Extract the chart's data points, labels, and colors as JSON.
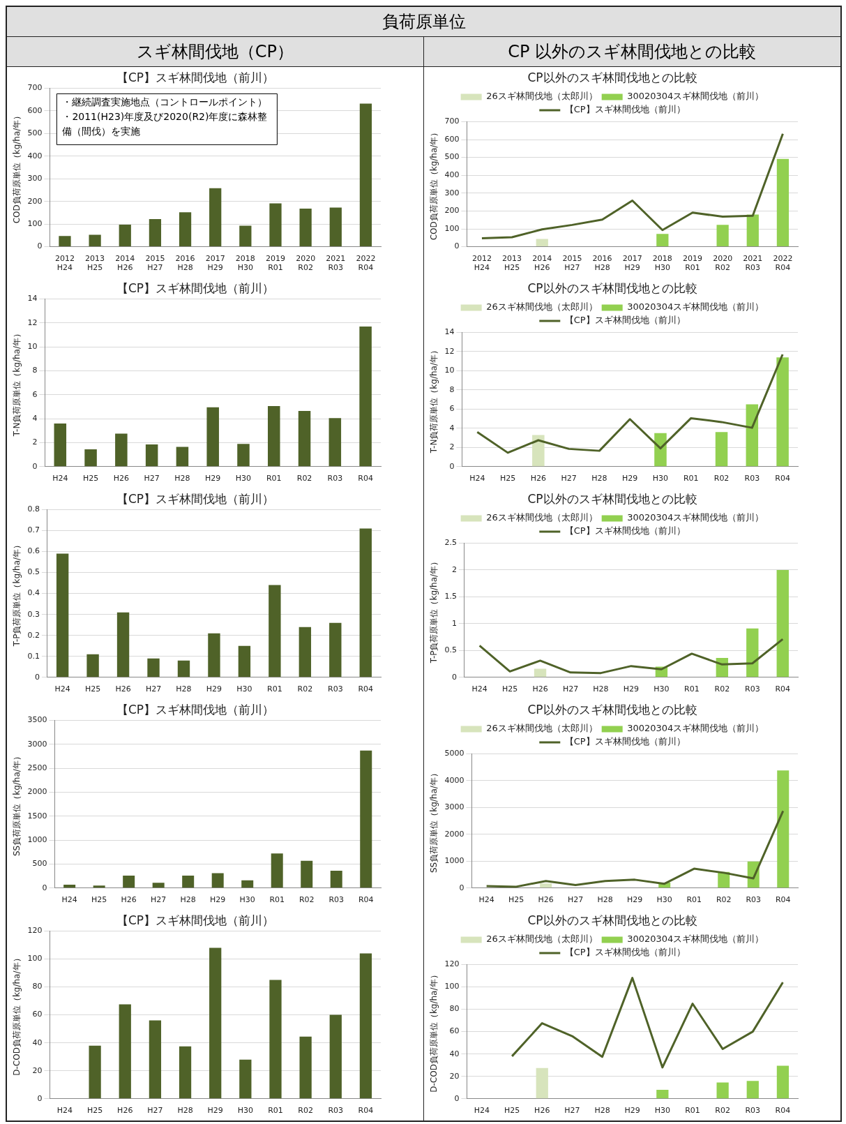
{
  "chart_data": [
    {
      "type": "other",
      "title": "負荷原単位",
      "annotations": [
        "スギ林間伐地（CP）",
        "CP 以外のスギ林間伐地との比較"
      ]
    },
    {
      "type": "bar",
      "title": "【CP】スギ林間伐地（前川）",
      "ylabel": "COD負荷原単位（kg/ha/年）",
      "categories": [
        "2012\nH24",
        "2013\nH25",
        "2014\nH26",
        "2015\nH27",
        "2016\nH28",
        "2017\nH29",
        "2018\nH30",
        "2019\nR01",
        "2020\nR02",
        "2021\nR03",
        "2022\nR04"
      ],
      "values": [
        47,
        53,
        97,
        122,
        152,
        258,
        93,
        191,
        168,
        173,
        632
      ],
      "color": "#4f6228",
      "ylim": [
        0,
        700
      ],
      "yticks": [
        0,
        100,
        200,
        300,
        400,
        500,
        600,
        700
      ],
      "grid": "y",
      "annotations": [
        "・継続調査実施地点（コントロールポイント）",
        "・2011(H23)年度及び2020(R2)年度に森林整備（間伐）を実施"
      ]
    },
    {
      "type": "bar",
      "title": "CP以外のスギ林間伐地との比較",
      "ylabel": "COD負荷原単位（kg/ha/年）",
      "categories": [
        "2012\nH24",
        "2013\nH25",
        "2014\nH26",
        "2015\nH27",
        "2016\nH28",
        "2017\nH29",
        "2018\nH30",
        "2019\nR01",
        "2020\nR02",
        "2021\nR03",
        "2022\nR04"
      ],
      "series": [
        {
          "name": "26スギ林間伐地（太郎川）",
          "color": "#d7e4bc",
          "values": [
            null,
            null,
            43,
            null,
            null,
            null,
            null,
            null,
            null,
            null,
            null
          ]
        },
        {
          "name": "30020304スギ林間伐地（前川）",
          "color": "#92d050",
          "values": [
            null,
            null,
            null,
            null,
            null,
            null,
            72,
            null,
            122,
            180,
            492
          ]
        },
        {
          "name": "【CP】スギ林間伐地（前川）",
          "type": "line",
          "color": "#4f6228",
          "values": [
            47,
            53,
            97,
            122,
            152,
            258,
            93,
            191,
            168,
            173,
            632
          ]
        }
      ],
      "ylim": [
        0,
        700
      ],
      "yticks": [
        0,
        100,
        200,
        300,
        400,
        500,
        600,
        700
      ],
      "grid": "y",
      "legend": "top",
      "marker": "none"
    },
    {
      "type": "bar",
      "title": "【CP】スギ林間伐地（前川）",
      "ylabel": "T-N負荷原単位（kg/ha/年）",
      "categories": [
        "H24",
        "H25",
        "H26",
        "H27",
        "H28",
        "H29",
        "H30",
        "R01",
        "R02",
        "R03",
        "R04"
      ],
      "values": [
        3.6,
        1.45,
        2.75,
        1.85,
        1.65,
        4.95,
        1.9,
        5.05,
        4.65,
        4.05,
        11.7
      ],
      "color": "#4f6228",
      "ylim": [
        0,
        14
      ],
      "yticks": [
        0,
        2,
        4,
        6,
        8,
        10,
        12,
        14
      ],
      "grid": "y"
    },
    {
      "type": "bar",
      "title": "CP以外のスギ林間伐地との比較",
      "ylabel": "T-N負荷原単位（kg/ha/年）",
      "categories": [
        "H24",
        "H25",
        "H26",
        "H27",
        "H28",
        "H29",
        "H30",
        "R01",
        "R02",
        "R03",
        "R04"
      ],
      "series": [
        {
          "name": "26スギ林間伐地（太郎川）",
          "color": "#d7e4bc",
          "values": [
            null,
            null,
            3.3,
            null,
            null,
            null,
            null,
            null,
            null,
            null,
            null
          ]
        },
        {
          "name": "30020304スギ林間伐地（前川）",
          "color": "#92d050",
          "values": [
            null,
            null,
            null,
            null,
            null,
            null,
            3.5,
            null,
            3.6,
            6.5,
            11.4
          ]
        },
        {
          "name": "【CP】スギ林間伐地（前川）",
          "type": "line",
          "color": "#4f6228",
          "values": [
            3.6,
            1.45,
            2.75,
            1.85,
            1.65,
            4.95,
            1.9,
            5.05,
            4.65,
            4.05,
            11.7
          ]
        }
      ],
      "ylim": [
        0,
        14
      ],
      "yticks": [
        0,
        2,
        4,
        6,
        8,
        10,
        12,
        14
      ],
      "grid": "y",
      "legend": "top",
      "marker": "none"
    },
    {
      "type": "bar",
      "title": "【CP】スギ林間伐地（前川）",
      "ylabel": "T-P負荷原単位（kg/ha/年）",
      "categories": [
        "H24",
        "H25",
        "H26",
        "H27",
        "H28",
        "H29",
        "H30",
        "R01",
        "R02",
        "R03",
        "R04"
      ],
      "values": [
        0.59,
        0.11,
        0.31,
        0.09,
        0.08,
        0.21,
        0.15,
        0.44,
        0.24,
        0.26,
        0.71
      ],
      "color": "#4f6228",
      "ylim": [
        0,
        0.8
      ],
      "yticks": [
        0,
        0.1,
        0.2,
        0.3,
        0.4,
        0.5,
        0.6,
        0.7,
        0.8
      ],
      "grid": "y"
    },
    {
      "type": "bar",
      "title": "CP以外のスギ林間伐地との比較",
      "ylabel": "T-P負荷原単位（kg/ha/年）",
      "categories": [
        "H24",
        "H25",
        "H26",
        "H27",
        "H28",
        "H29",
        "H30",
        "R01",
        "R02",
        "R03",
        "R04"
      ],
      "series": [
        {
          "name": "26スギ林間伐地（太郎川）",
          "color": "#d7e4bc",
          "values": [
            null,
            null,
            0.16,
            null,
            null,
            null,
            null,
            null,
            null,
            null,
            null
          ]
        },
        {
          "name": "30020304スギ林間伐地（前川）",
          "color": "#92d050",
          "values": [
            null,
            null,
            null,
            null,
            null,
            null,
            0.2,
            null,
            0.36,
            0.91,
            2.0
          ]
        },
        {
          "name": "【CP】スギ林間伐地（前川）",
          "type": "line",
          "color": "#4f6228",
          "values": [
            0.59,
            0.11,
            0.31,
            0.09,
            0.08,
            0.21,
            0.15,
            0.44,
            0.24,
            0.26,
            0.71
          ]
        }
      ],
      "ylim": [
        0,
        2.5
      ],
      "yticks": [
        0,
        0.5,
        1,
        1.5,
        2,
        2.5
      ],
      "grid": "y",
      "legend": "top",
      "marker": "none"
    },
    {
      "type": "bar",
      "title": "【CP】スギ林間伐地（前川）",
      "ylabel": "SS負荷原単位（kg/ha/年）",
      "categories": [
        "H24",
        "H25",
        "H26",
        "H27",
        "H28",
        "H29",
        "H30",
        "R01",
        "R02",
        "R03",
        "R04"
      ],
      "values": [
        70,
        50,
        260,
        110,
        260,
        310,
        160,
        720,
        570,
        360,
        2870
      ],
      "color": "#4f6228",
      "ylim": [
        0,
        3500
      ],
      "yticks": [
        0,
        500,
        1000,
        1500,
        2000,
        2500,
        3000,
        3500
      ],
      "grid": "y"
    },
    {
      "type": "bar",
      "title": "CP以外のスギ林間伐地との比較",
      "ylabel": "SS負荷原単位（kg/ha/年）",
      "categories": [
        "H24",
        "H25",
        "H26",
        "H27",
        "H28",
        "H29",
        "H30",
        "R01",
        "R02",
        "R03",
        "R04"
      ],
      "series": [
        {
          "name": "26スギ林間伐地（太郎川）",
          "color": "#d7e4bc",
          "values": [
            null,
            null,
            170,
            null,
            null,
            null,
            null,
            null,
            null,
            null,
            null
          ]
        },
        {
          "name": "30020304スギ林間伐地（前川）",
          "color": "#92d050",
          "values": [
            null,
            null,
            null,
            null,
            null,
            null,
            200,
            null,
            600,
            990,
            4380
          ]
        },
        {
          "name": "【CP】スギ林間伐地（前川）",
          "type": "line",
          "color": "#4f6228",
          "values": [
            70,
            50,
            260,
            110,
            260,
            310,
            160,
            720,
            570,
            360,
            2870
          ]
        }
      ],
      "ylim": [
        0,
        5000
      ],
      "yticks": [
        0,
        1000,
        2000,
        3000,
        4000,
        5000
      ],
      "grid": "y",
      "legend": "top",
      "marker": "none"
    },
    {
      "type": "bar",
      "title": "【CP】スギ林間伐地（前川）",
      "ylabel": "D-COD負荷原単位（kg/ha/年）",
      "categories": [
        "H24",
        "H25",
        "H26",
        "H27",
        "H28",
        "H29",
        "H30",
        "R01",
        "R02",
        "R03",
        "R04"
      ],
      "values": [
        null,
        38,
        67.5,
        56,
        37.5,
        108,
        28,
        85,
        44.5,
        60,
        104
      ],
      "color": "#4f6228",
      "ylim": [
        0,
        120
      ],
      "yticks": [
        0,
        20,
        40,
        60,
        80,
        100,
        120
      ],
      "grid": "y"
    },
    {
      "type": "bar",
      "title": "CP以外のスギ林間伐地との比較",
      "ylabel": "D-COD負荷原単位（kg/ha/年）",
      "categories": [
        "H24",
        "H25",
        "H26",
        "H27",
        "H28",
        "H29",
        "H30",
        "R01",
        "R02",
        "R03",
        "R04"
      ],
      "series": [
        {
          "name": "26スギ林間伐地（太郎川）",
          "color": "#d7e4bc",
          "values": [
            null,
            null,
            27.5,
            null,
            null,
            null,
            null,
            null,
            null,
            null,
            null
          ]
        },
        {
          "name": "30020304スギ林間伐地（前川）",
          "color": "#92d050",
          "values": [
            null,
            null,
            null,
            null,
            null,
            null,
            8,
            null,
            14.5,
            16,
            29.5
          ]
        },
        {
          "name": "【CP】スギ林間伐地（前川）",
          "type": "line",
          "color": "#4f6228",
          "values": [
            null,
            38,
            67.5,
            56,
            37.5,
            108,
            28,
            85,
            44.5,
            60,
            104
          ]
        }
      ],
      "ylim": [
        0,
        120
      ],
      "yticks": [
        0,
        20,
        40,
        60,
        80,
        100,
        120
      ],
      "grid": "y",
      "legend": "top",
      "marker": "none"
    }
  ]
}
